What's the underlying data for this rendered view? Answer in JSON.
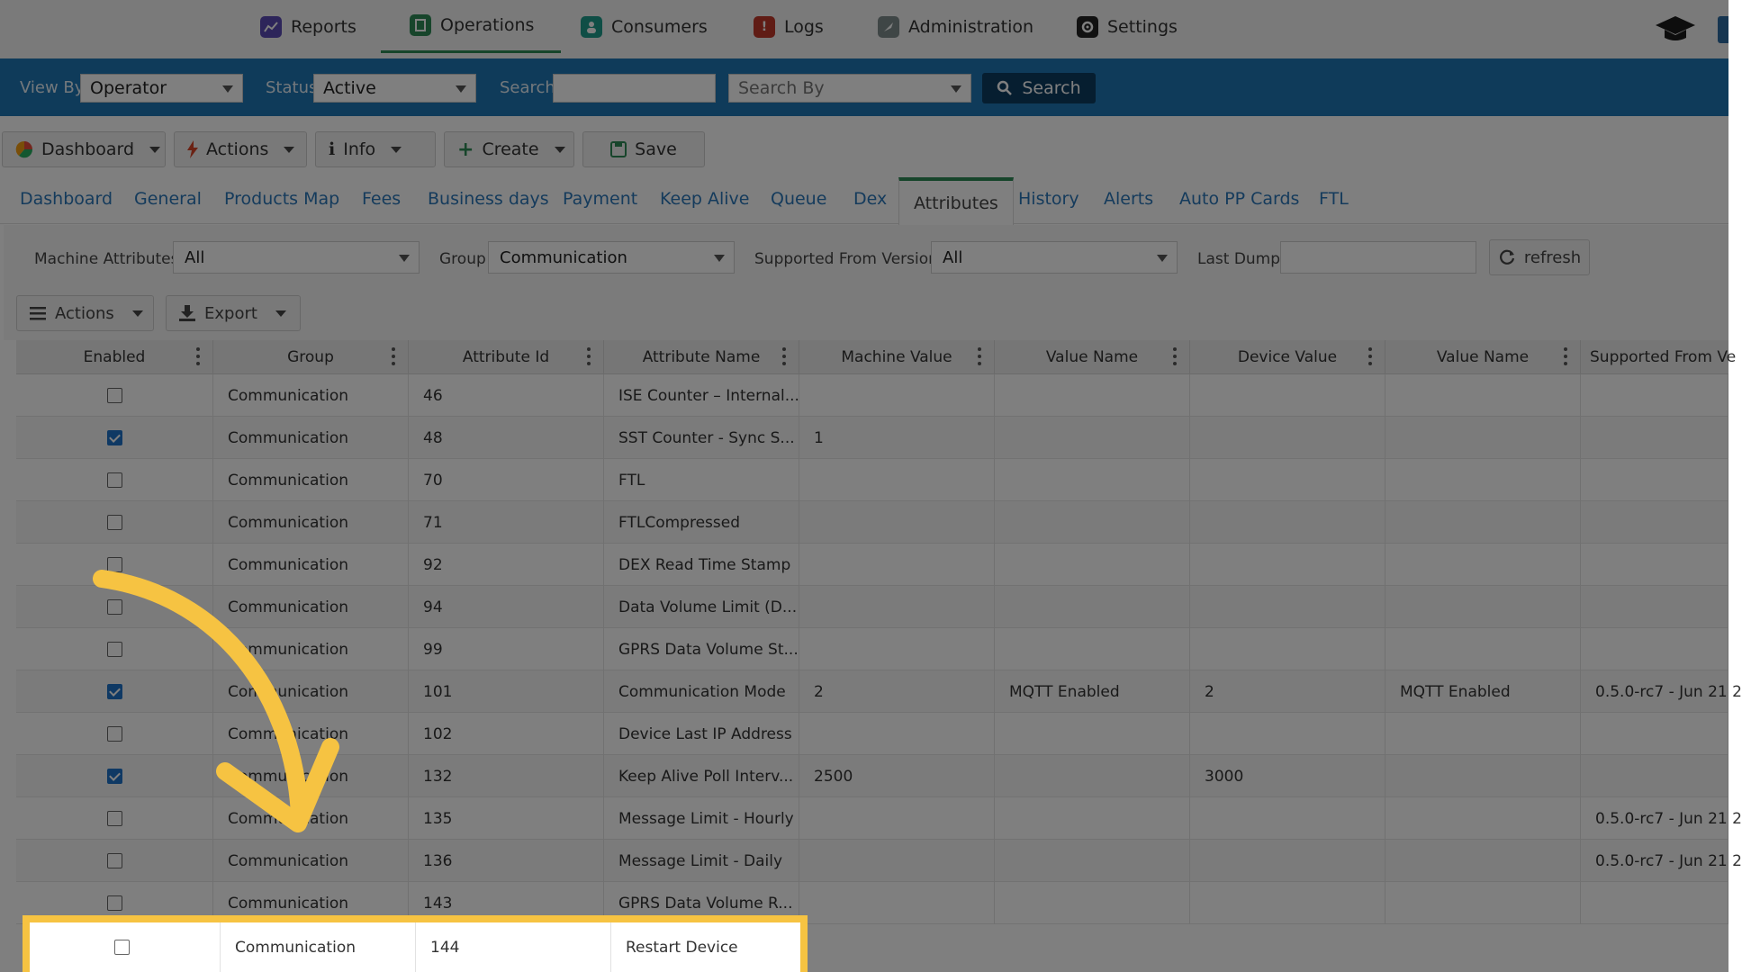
{
  "topnav": {
    "items": [
      {
        "label": "Reports",
        "icon": "reports-icon",
        "color": "#5b4bb5"
      },
      {
        "label": "Operations",
        "icon": "operations-icon",
        "color": "#2e8b57"
      },
      {
        "label": "Consumers",
        "icon": "consumers-icon",
        "color": "#1e9c8c"
      },
      {
        "label": "Logs",
        "icon": "logs-icon",
        "color": "#c0392b"
      },
      {
        "label": "Administration",
        "icon": "administration-icon",
        "color": "#7f8c8d"
      },
      {
        "label": "Settings",
        "icon": "settings-icon",
        "color": "#222222"
      }
    ],
    "active": "Operations"
  },
  "filterbar": {
    "view_by_label": "View By",
    "view_by_value": "Operator",
    "status_label": "Status",
    "status_value": "Active",
    "search_label": "Search",
    "search_value": "",
    "search_by_placeholder": "Search By",
    "search_button": "Search"
  },
  "toolbar": {
    "dashboard": "Dashboard",
    "actions": "Actions",
    "info": "Info",
    "create": "Create",
    "save": "Save"
  },
  "tabs": [
    "Dashboard",
    "General",
    "Products Map",
    "Fees",
    "Business days",
    "Payment",
    "Keep Alive",
    "Queue",
    "Dex",
    "Attributes",
    "History",
    "Alerts",
    "Auto PP Cards",
    "FTL"
  ],
  "active_tab": "Attributes",
  "attr_filter": {
    "machine_attributes_label": "Machine Attributes",
    "machine_attributes_value": "All",
    "group_label": "Group",
    "group_value": "Communication",
    "supported_label": "Supported From Version",
    "supported_value": "All",
    "last_dump_label": "Last Dump:",
    "last_dump_value": "",
    "refresh": "refresh"
  },
  "grid_tools": {
    "actions": "Actions",
    "export": "Export"
  },
  "table": {
    "columns": [
      "Enabled",
      "Group",
      "Attribute Id",
      "Attribute Name",
      "Machine Value",
      "Value Name",
      "Device Value",
      "Value Name",
      "Supported From Ve"
    ],
    "rows": [
      {
        "enabled": false,
        "group": "Communication",
        "id": "46",
        "name": "ISE Counter – Internal...",
        "machine_value": "",
        "value_name": "",
        "device_value": "",
        "value_name2": "",
        "supported": ""
      },
      {
        "enabled": true,
        "group": "Communication",
        "id": "48",
        "name": "SST Counter - Sync S...",
        "machine_value": "1",
        "value_name": "",
        "device_value": "",
        "value_name2": "",
        "supported": ""
      },
      {
        "enabled": false,
        "group": "Communication",
        "id": "70",
        "name": "FTL",
        "machine_value": "",
        "value_name": "",
        "device_value": "",
        "value_name2": "",
        "supported": ""
      },
      {
        "enabled": false,
        "group": "Communication",
        "id": "71",
        "name": "FTLCompressed",
        "machine_value": "",
        "value_name": "",
        "device_value": "",
        "value_name2": "",
        "supported": ""
      },
      {
        "enabled": false,
        "group": "Communication",
        "id": "92",
        "name": "DEX Read Time Stamp",
        "machine_value": "",
        "value_name": "",
        "device_value": "",
        "value_name2": "",
        "supported": ""
      },
      {
        "enabled": false,
        "group": "Communication",
        "id": "94",
        "name": "Data Volume Limit (D...",
        "machine_value": "",
        "value_name": "",
        "device_value": "",
        "value_name2": "",
        "supported": ""
      },
      {
        "enabled": false,
        "group": "Communication",
        "id": "99",
        "name": "GPRS Data Volume St...",
        "machine_value": "",
        "value_name": "",
        "device_value": "",
        "value_name2": "",
        "supported": ""
      },
      {
        "enabled": true,
        "group": "Communication",
        "id": "101",
        "name": "Communication Mode",
        "machine_value": "2",
        "value_name": "MQTT Enabled",
        "device_value": "2",
        "value_name2": "MQTT Enabled",
        "supported": "0.5.0-rc7 - Jun 21 2"
      },
      {
        "enabled": false,
        "group": "Communication",
        "id": "102",
        "name": "Device Last IP Address",
        "machine_value": "",
        "value_name": "",
        "device_value": "",
        "value_name2": "",
        "supported": ""
      },
      {
        "enabled": true,
        "group": "Communication",
        "id": "132",
        "name": "Keep Alive Poll Interv...",
        "machine_value": "2500",
        "value_name": "",
        "device_value": "3000",
        "value_name2": "",
        "supported": ""
      },
      {
        "enabled": false,
        "group": "Communication",
        "id": "135",
        "name": "Message Limit - Hourly",
        "machine_value": "",
        "value_name": "",
        "device_value": "",
        "value_name2": "",
        "supported": "0.5.0-rc7 - Jun 21 2"
      },
      {
        "enabled": false,
        "group": "Communication",
        "id": "136",
        "name": "Message Limit - Daily",
        "machine_value": "",
        "value_name": "",
        "device_value": "",
        "value_name2": "",
        "supported": "0.5.0-rc7 - Jun 21 2"
      },
      {
        "enabled": false,
        "group": "Communication",
        "id": "143",
        "name": "GPRS Data Volume R...",
        "machine_value": "",
        "value_name": "",
        "device_value": "",
        "value_name2": "",
        "supported": ""
      }
    ],
    "highlighted_row": {
      "enabled": false,
      "group": "Communication",
      "id": "144",
      "name": "Restart Device"
    }
  },
  "colors": {
    "brand_blue": "#1f77b4",
    "search_button": "#0d3c61",
    "active_tab_accent": "#2e8b57",
    "highlight": "#f6c342",
    "checkbox_checked": "#1e73c8",
    "link": "#2a76b8"
  }
}
